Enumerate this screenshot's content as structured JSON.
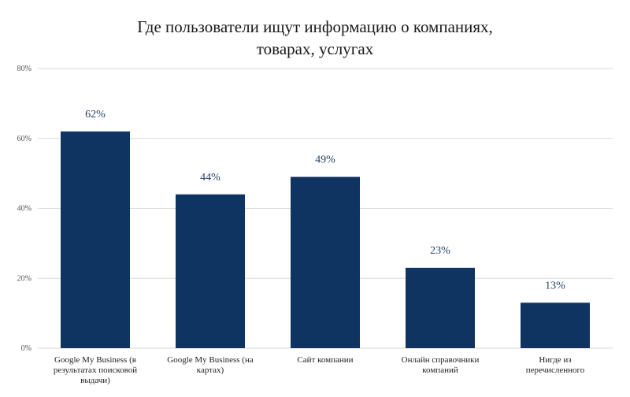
{
  "chart_data": {
    "type": "bar",
    "title_lines": [
      "Где пользователи ищут информацию о компаниях,",
      "товарах, услугах"
    ],
    "categories": [
      [
        "Google My Business (в",
        "результатах поисковой",
        "выдачи)"
      ],
      [
        "Google My Business (на",
        "картах)"
      ],
      [
        "Сайт компании"
      ],
      [
        "Онлайн справочники",
        "компаний"
      ],
      [
        "Нигде из",
        "перечисленного"
      ]
    ],
    "values": [
      62,
      44,
      49,
      23,
      13
    ],
    "value_labels": [
      "62%",
      "44%",
      "49%",
      "23%",
      "13%"
    ],
    "yticks": [
      0,
      20,
      40,
      60,
      80
    ],
    "ytick_labels": [
      "0%",
      "20%",
      "40%",
      "60%",
      "80%"
    ],
    "ylim": [
      0,
      80
    ],
    "grid": true,
    "bar_color": "#0f3461",
    "label_color": "#243f66",
    "grid_color": "#d9d9d9"
  }
}
